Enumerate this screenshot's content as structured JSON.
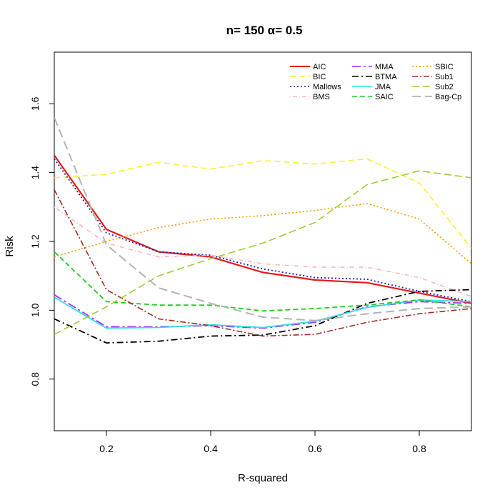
{
  "chart_data": {
    "type": "line",
    "title": "n= 150 α= 0.5",
    "xlabel": "R-squared",
    "ylabel": "Risk",
    "xlim": [
      0.1,
      0.9
    ],
    "ylim": [
      0.65,
      1.75
    ],
    "xticks": [
      0.2,
      0.4,
      0.6,
      0.8
    ],
    "xtick_labels": [
      "0.2",
      "0.4",
      "0.6",
      "0.8"
    ],
    "yticks": [
      0.8,
      1.0,
      1.2,
      1.4,
      1.6
    ],
    "ytick_labels": [
      "0.8",
      "1.0",
      "1.2",
      "1.4",
      "1.6"
    ],
    "legend_position": "top-right",
    "x": [
      0.1,
      0.2,
      0.3,
      0.4,
      0.5,
      0.6,
      0.7,
      0.8,
      0.9
    ],
    "series": [
      {
        "name": "AIC",
        "color": "#e41a1c",
        "width": 2.2,
        "dash": "",
        "values": [
          1.45,
          1.235,
          1.17,
          1.155,
          1.11,
          1.088,
          1.08,
          1.05,
          1.02
        ]
      },
      {
        "name": "BIC",
        "color": "#ffee33",
        "width": 1.6,
        "dash": "8 5",
        "values": [
          1.385,
          1.395,
          1.43,
          1.41,
          1.435,
          1.425,
          1.44,
          1.37,
          1.18
        ]
      },
      {
        "name": "Mallows",
        "color": "#1f1fb4",
        "width": 1.8,
        "dash": "2 3",
        "values": [
          1.44,
          1.225,
          1.17,
          1.16,
          1.12,
          1.095,
          1.09,
          1.055,
          1.025
        ]
      },
      {
        "name": "BMS",
        "color": "#ffb6c1",
        "width": 1.6,
        "dash": "1 3 6 3",
        "values": [
          1.3,
          1.195,
          1.155,
          1.16,
          1.135,
          1.125,
          1.125,
          1.095,
          1.04
        ]
      },
      {
        "name": "MMA",
        "color": "#9933ff",
        "width": 1.8,
        "dash": "12 4 3 4",
        "values": [
          1.045,
          0.952,
          0.952,
          0.955,
          0.948,
          0.965,
          1.01,
          1.025,
          1.02
        ]
      },
      {
        "name": "BTMA",
        "color": "#000000",
        "width": 1.8,
        "dash": "9 4 2 4",
        "values": [
          0.975,
          0.905,
          0.91,
          0.925,
          0.928,
          0.955,
          1.02,
          1.055,
          1.06
        ]
      },
      {
        "name": "JMA",
        "color": "#33dddd",
        "width": 1.8,
        "dash": "",
        "values": [
          1.038,
          0.948,
          0.95,
          0.958,
          0.95,
          0.968,
          1.008,
          1.03,
          1.025
        ]
      },
      {
        "name": "SAIC",
        "color": "#22cc22",
        "width": 1.8,
        "dash": "7 4",
        "values": [
          1.17,
          1.025,
          1.015,
          1.015,
          0.998,
          1.005,
          1.015,
          1.03,
          1.01
        ]
      },
      {
        "name": "SBIC",
        "color": "#ff9900",
        "width": 1.6,
        "dash": "2 3",
        "values": [
          1.155,
          1.2,
          1.24,
          1.265,
          1.275,
          1.29,
          1.31,
          1.265,
          1.135
        ]
      },
      {
        "name": "Sub1",
        "color": "#a52a2a",
        "width": 1.6,
        "dash": "8 3 2 3",
        "values": [
          1.35,
          1.06,
          0.975,
          0.955,
          0.925,
          0.93,
          0.965,
          0.99,
          1.005
        ]
      },
      {
        "name": "Sub2",
        "color": "#9acd32",
        "width": 1.6,
        "dash": "10 5",
        "values": [
          0.93,
          1.01,
          1.1,
          1.15,
          1.195,
          1.255,
          1.365,
          1.405,
          1.385
        ]
      },
      {
        "name": "Bag-Cp",
        "color": "#b3b3b3",
        "width": 2.0,
        "dash": "12 6",
        "values": [
          1.56,
          1.19,
          1.065,
          1.02,
          0.98,
          0.97,
          0.99,
          1.005,
          1.01
        ]
      }
    ]
  }
}
